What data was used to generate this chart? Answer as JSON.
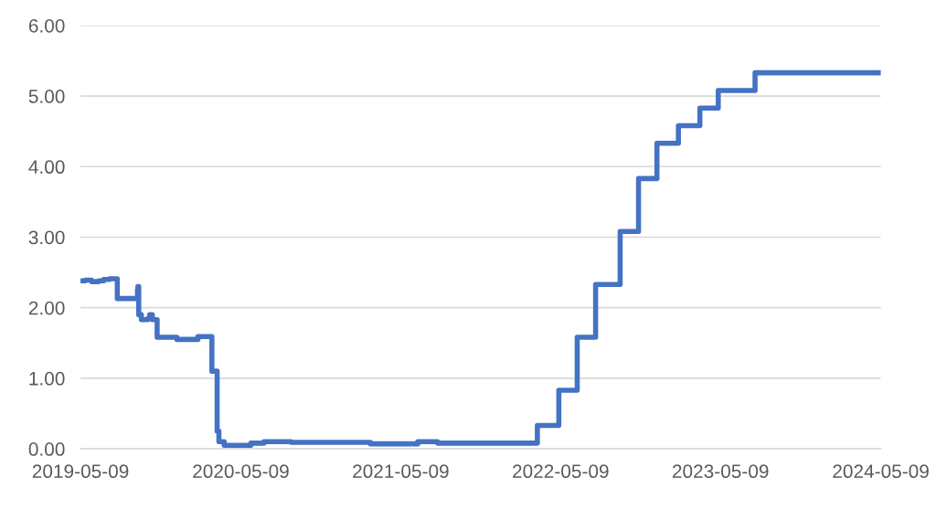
{
  "chart_data": {
    "type": "step",
    "x": [
      "2019-05-09",
      "2019-05-20",
      "2019-06-03",
      "2019-06-20",
      "2019-07-01",
      "2019-07-15",
      "2019-08-01",
      "2019-09-16",
      "2019-09-17",
      "2019-09-19",
      "2019-09-25",
      "2019-10-10",
      "2019-10-14",
      "2019-10-20",
      "2019-10-31",
      "2019-12-15",
      "2020-01-15",
      "2020-02-01",
      "2020-03-04",
      "2020-03-16",
      "2020-03-20",
      "2020-04-01",
      "2020-06-01",
      "2020-07-01",
      "2020-09-01",
      "2021-01-01",
      "2021-03-01",
      "2021-06-17",
      "2021-08-01",
      "2022-03-17",
      "2022-05-05",
      "2022-06-16",
      "2022-07-28",
      "2022-09-22",
      "2022-11-03",
      "2022-12-15",
      "2023-02-02",
      "2023-03-23",
      "2023-05-04",
      "2023-07-27",
      "2024-05-09"
    ],
    "series": [
      {
        "color": "#4472c4",
        "values": [
          2.38,
          2.39,
          2.37,
          2.38,
          2.4,
          2.41,
          2.13,
          2.25,
          2.3,
          1.9,
          1.83,
          1.85,
          1.9,
          1.83,
          1.58,
          1.55,
          1.55,
          1.59,
          1.1,
          0.25,
          0.1,
          0.05,
          0.08,
          0.1,
          0.09,
          0.09,
          0.07,
          0.1,
          0.08,
          0.33,
          0.83,
          1.58,
          2.33,
          3.08,
          3.83,
          4.33,
          4.58,
          4.83,
          5.08,
          5.33,
          5.33
        ]
      }
    ],
    "xlim": [
      "2019-05-09",
      "2024-05-09"
    ],
    "xticks": [
      "2019-05-09",
      "2020-05-09",
      "2021-05-09",
      "2022-05-09",
      "2023-05-09",
      "2024-05-09"
    ],
    "ylim": [
      0,
      6
    ],
    "yticks": [
      {
        "value": 0,
        "label": "0.00"
      },
      {
        "value": 1,
        "label": "1.00"
      },
      {
        "value": 2,
        "label": "2.00"
      },
      {
        "value": 3,
        "label": "3.00"
      },
      {
        "value": 4,
        "label": "4.00"
      },
      {
        "value": 5,
        "label": "5.00"
      },
      {
        "value": 6,
        "label": "6.00"
      }
    ],
    "grid": "y",
    "line_style": "solid",
    "marker": "none"
  }
}
